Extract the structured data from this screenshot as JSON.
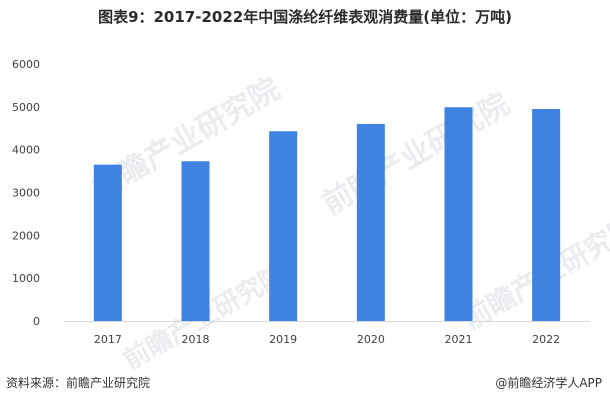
{
  "title": "图表9：2017-2022年中国涤纶纤维表观消费量(单位：万吨)",
  "footer": {
    "source": "资料来源：前瞻产业研究院",
    "credit": "@前瞻经济学人APP"
  },
  "watermark": "前瞻产业研究院",
  "colors": {
    "bar": "#3f83e0",
    "axis": "#d9d9d9",
    "tick_text": "#404040"
  },
  "chart_data": {
    "type": "bar",
    "title": "图表9：2017-2022年中国涤纶纤维表观消费量(单位：万吨)",
    "categories": [
      "2017",
      "2018",
      "2019",
      "2020",
      "2021",
      "2022"
    ],
    "values": [
      3650,
      3730,
      4430,
      4600,
      4990,
      4950
    ],
    "ylim": [
      0,
      6000
    ],
    "yticks": [
      0,
      1000,
      2000,
      3000,
      4000,
      5000,
      6000
    ],
    "xlabel": "",
    "ylabel": "",
    "grid": false,
    "legend": "none"
  }
}
